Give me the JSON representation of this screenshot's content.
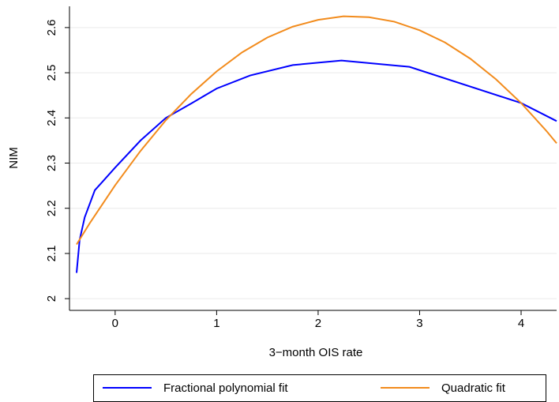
{
  "chart_data": {
    "type": "line",
    "x_label": "3−month OIS rate",
    "y_label": "NIM",
    "xlim": [
      -0.45,
      4.35
    ],
    "ylim": [
      1.974,
      2.647
    ],
    "xticks": [
      0,
      1,
      2,
      3,
      4
    ],
    "yticks": [
      2,
      2.1,
      2.2,
      2.3,
      2.4,
      2.5,
      2.6
    ],
    "grid": true,
    "legend": "bottom",
    "series": [
      {
        "name": "Fractional polynomial fit",
        "color": "#0000ff",
        "x": [
          -0.38,
          -0.35,
          -0.3,
          -0.2,
          0,
          0.25,
          0.5,
          0.75,
          1,
          1.33,
          1.75,
          2.23,
          2.9,
          4,
          4.35
        ],
        "values": [
          2.057,
          2.13,
          2.18,
          2.24,
          2.29,
          2.35,
          2.4,
          2.432,
          2.465,
          2.494,
          2.517,
          2.527,
          2.513,
          2.433,
          2.393
        ]
      },
      {
        "name": "Quadratic fit",
        "color": "#f28b1c",
        "x": [
          -0.38,
          -0.25,
          0,
          0.25,
          0.5,
          0.75,
          1,
          1.25,
          1.5,
          1.75,
          2,
          2.25,
          2.5,
          2.75,
          3,
          3.25,
          3.5,
          3.75,
          4,
          4.25,
          4.35
        ],
        "values": [
          2.12,
          2.167,
          2.251,
          2.327,
          2.395,
          2.453,
          2.503,
          2.545,
          2.578,
          2.602,
          2.617,
          2.625,
          2.623,
          2.613,
          2.594,
          2.567,
          2.531,
          2.486,
          2.433,
          2.371,
          2.344
        ]
      }
    ]
  }
}
